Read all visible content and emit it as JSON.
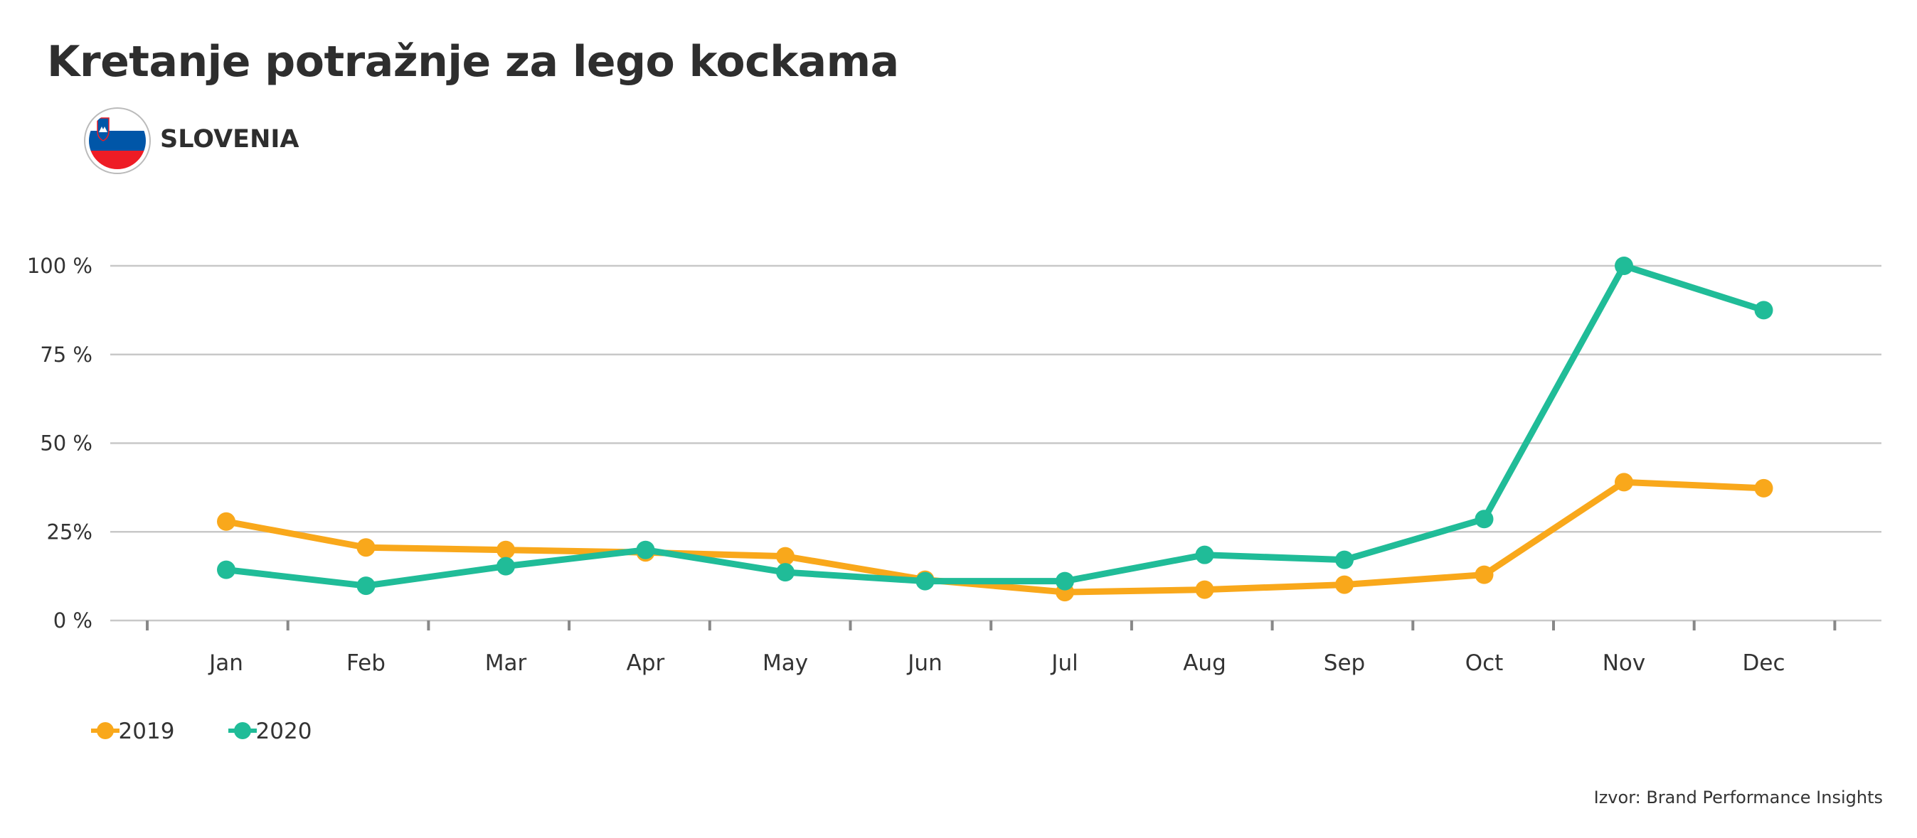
{
  "title": "Kretanje potražnje za lego kockama",
  "country": {
    "name": "SLOVENIA",
    "flag_icon": "slovenia-flag-icon"
  },
  "source": "Izvor: Brand Performance Insights",
  "colors": {
    "2019": "#F9A81B",
    "2020": "#20BC98",
    "grid": "#cccccc",
    "text": "#333333"
  },
  "chart_data": {
    "type": "line",
    "title": "Kretanje potražnje za lego kockama",
    "xlabel": "",
    "ylabel": "",
    "categories": [
      "Jan",
      "Feb",
      "Mar",
      "Apr",
      "May",
      "Jun",
      "Jul",
      "Aug",
      "Sep",
      "Oct",
      "Nov",
      "Dec"
    ],
    "yticks": [
      {
        "value": 0,
        "label": "0 %"
      },
      {
        "value": 25,
        "label": "25%"
      },
      {
        "value": 50,
        "label": "50 %"
      },
      {
        "value": 75,
        "label": "75 %"
      },
      {
        "value": 100,
        "label": "100 %"
      }
    ],
    "ylim": [
      0,
      100
    ],
    "grid": true,
    "legend_position": "bottom-left",
    "series": [
      {
        "name": "2019",
        "color": "#F9A81B",
        "values": [
          27.9,
          20.6,
          19.9,
          19.2,
          18.1,
          11.5,
          8.0,
          8.7,
          10.1,
          12.9,
          39.0,
          37.3
        ]
      },
      {
        "name": "2020",
        "color": "#20BC98",
        "values": [
          14.3,
          9.8,
          15.3,
          19.9,
          13.6,
          11.1,
          11.1,
          18.5,
          17.1,
          28.6,
          100,
          87.5
        ]
      }
    ]
  }
}
